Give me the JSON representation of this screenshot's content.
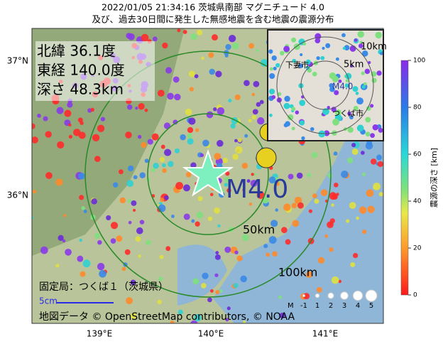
{
  "header": {
    "title": "2022/01/05 21:34:16 茨城県南部 マグニチュード 4.0",
    "subtitle": "及び、過去30日間に発生した無感地震を含む地震の震源分布"
  },
  "info": {
    "latitude": "北緯  36.1度",
    "longitude": "東経 140.0度",
    "depth": "深さ  48.3km"
  },
  "map": {
    "magnitude": "M4.0",
    "ring_50": "50km",
    "ring_100": "100km",
    "lat_labels": [
      "37°N",
      "36°N"
    ],
    "lon_labels": [
      "139°E",
      "140°E",
      "141°E"
    ],
    "station": "固定局：つくば１（茨城県）",
    "scale": "5cm",
    "credit": "地図データ © OpenStreetMap contributors, © NOAA"
  },
  "inset": {
    "ring_10": "10km",
    "ring_5": "5km",
    "magnitude": "M4.0",
    "city_1": "下妻市",
    "city_2": "つくば市"
  },
  "legend": {
    "title": "M",
    "labels": [
      "-1",
      "1",
      "2",
      "3",
      "4",
      "5"
    ]
  },
  "colorbar": {
    "label": "震源の深さ [km]",
    "lim": [
      0,
      100
    ],
    "ticks": [
      0,
      20,
      40,
      60,
      80,
      100
    ]
  }
}
